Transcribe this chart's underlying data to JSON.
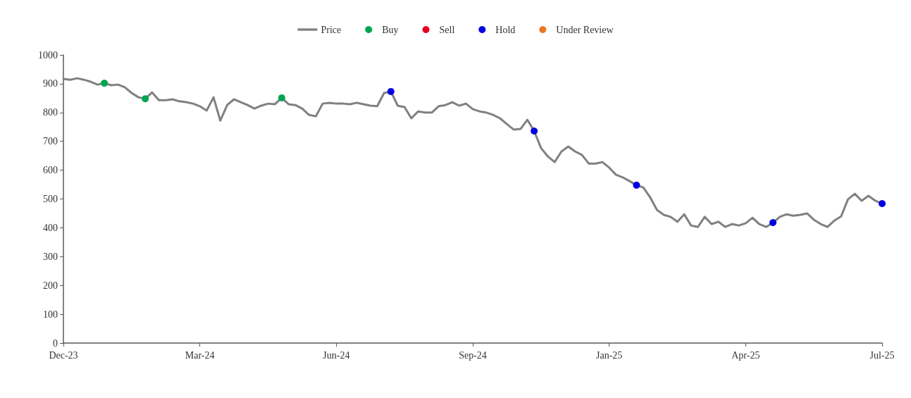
{
  "chart_data": {
    "type": "line",
    "categories": [
      "Dec-23",
      null,
      null,
      null,
      null,
      null,
      null,
      null,
      null,
      null,
      null,
      null,
      null,
      null,
      null,
      null,
      null,
      null,
      null,
      null,
      "Mar-24",
      null,
      null,
      null,
      null,
      null,
      null,
      null,
      null,
      null,
      null,
      null,
      null,
      null,
      null,
      null,
      null,
      null,
      null,
      null,
      "Jun-24",
      null,
      null,
      null,
      null,
      null,
      null,
      null,
      null,
      null,
      null,
      null,
      null,
      null,
      null,
      null,
      null,
      null,
      null,
      null,
      "Sep-24",
      null,
      null,
      null,
      null,
      null,
      null,
      null,
      null,
      null,
      null,
      null,
      null,
      null,
      null,
      null,
      null,
      null,
      null,
      null,
      "Jan-25",
      null,
      null,
      null,
      null,
      null,
      null,
      null,
      null,
      null,
      null,
      null,
      null,
      null,
      null,
      null,
      null,
      null,
      null,
      null,
      "Apr-25",
      null,
      null,
      null,
      null,
      null,
      null,
      null,
      null,
      null,
      null,
      null,
      null,
      null,
      null,
      null,
      null,
      null,
      null,
      null,
      "Jul-25"
    ],
    "series": [
      {
        "name": "Price",
        "color": "#808080",
        "values": [
          917,
          914,
          919,
          914,
          907,
          897,
          902,
          895,
          897,
          888,
          868,
          853,
          848,
          870,
          843,
          843,
          846,
          839,
          836,
          831,
          822,
          807,
          853,
          772,
          826,
          846,
          836,
          826,
          814,
          824,
          831,
          829,
          851,
          829,
          826,
          814,
          792,
          787,
          831,
          834,
          831,
          831,
          829,
          834,
          829,
          824,
          822,
          868,
          873,
          824,
          819,
          780,
          804,
          800,
          800,
          822,
          826,
          836,
          824,
          831,
          812,
          804,
          800,
          792,
          780,
          760,
          741,
          743,
          775,
          736,
          677,
          648,
          628,
          665,
          682,
          665,
          653,
          623,
          623,
          628,
          609,
          584,
          575,
          562,
          548,
          540,
          506,
          462,
          445,
          438,
          421,
          447,
          408,
          403,
          438,
          413,
          421,
          403,
          413,
          408,
          416,
          435,
          413,
          403,
          418,
          438,
          447,
          442,
          445,
          450,
          428,
          413,
          403,
          425,
          440,
          499,
          518,
          494,
          511,
          494,
          484
        ]
      },
      {
        "name": "Buy",
        "type": "scatter",
        "marker": "circle",
        "color": "#00a550",
        "values": [
          null,
          null,
          null,
          null,
          null,
          null,
          902,
          null,
          null,
          null,
          null,
          null,
          848,
          null,
          null,
          null,
          null,
          null,
          null,
          null,
          null,
          null,
          null,
          null,
          null,
          null,
          null,
          null,
          null,
          null,
          null,
          null,
          851,
          null,
          null,
          null,
          null,
          null,
          null,
          null,
          null,
          null,
          null,
          null,
          null,
          null,
          null,
          null,
          null,
          null,
          null,
          null,
          null,
          null,
          null,
          null,
          null,
          null,
          null,
          null,
          null,
          null,
          null,
          null,
          null,
          null,
          null,
          null,
          null,
          null,
          null,
          null,
          null,
          null,
          null,
          null,
          null,
          null,
          null,
          null,
          null,
          null,
          null,
          null,
          null,
          null,
          null,
          null,
          null,
          null,
          null,
          null,
          null,
          null,
          null,
          null,
          null,
          null,
          null,
          null,
          null,
          null,
          null,
          null,
          null,
          null,
          null,
          null,
          null,
          null,
          null,
          null,
          null,
          null,
          null,
          null,
          null,
          null,
          null,
          null,
          null
        ]
      },
      {
        "name": "Sell",
        "type": "scatter",
        "marker": "circle",
        "color": "#e8001c",
        "values": [
          null,
          null,
          null,
          null,
          null,
          null,
          null,
          null,
          null,
          null,
          null,
          null,
          null,
          null,
          null,
          null,
          null,
          null,
          null,
          null,
          null,
          null,
          null,
          null,
          null,
          null,
          null,
          null,
          null,
          null,
          null,
          null,
          null,
          null,
          null,
          null,
          null,
          null,
          null,
          null,
          null,
          null,
          null,
          null,
          null,
          null,
          null,
          null,
          null,
          null,
          null,
          null,
          null,
          null,
          null,
          null,
          null,
          null,
          null,
          null,
          null,
          null,
          null,
          null,
          null,
          null,
          null,
          null,
          null,
          null,
          null,
          null,
          null,
          null,
          null,
          null,
          null,
          null,
          null,
          null,
          null,
          null,
          null,
          null,
          null,
          null,
          null,
          null,
          null,
          null,
          null,
          null,
          null,
          null,
          null,
          null,
          null,
          null,
          null,
          null,
          null,
          null,
          null,
          null,
          null,
          null,
          null,
          null,
          null,
          null,
          null,
          null,
          null,
          null,
          null,
          null,
          null,
          null,
          null,
          null,
          null
        ]
      },
      {
        "name": "Hold",
        "type": "scatter",
        "marker": "circle",
        "color": "#0000e0",
        "values": [
          null,
          null,
          null,
          null,
          null,
          null,
          null,
          null,
          null,
          null,
          null,
          null,
          null,
          null,
          null,
          null,
          null,
          null,
          null,
          null,
          null,
          null,
          null,
          null,
          null,
          null,
          null,
          null,
          null,
          null,
          null,
          null,
          null,
          null,
          null,
          null,
          null,
          null,
          null,
          null,
          null,
          null,
          null,
          null,
          null,
          null,
          null,
          null,
          873,
          null,
          null,
          null,
          null,
          null,
          null,
          null,
          null,
          null,
          null,
          null,
          null,
          null,
          null,
          null,
          null,
          null,
          null,
          null,
          null,
          736,
          null,
          null,
          null,
          null,
          null,
          null,
          null,
          null,
          null,
          null,
          null,
          null,
          null,
          null,
          548,
          null,
          null,
          null,
          null,
          null,
          null,
          null,
          null,
          null,
          null,
          null,
          null,
          null,
          null,
          null,
          null,
          null,
          null,
          null,
          418,
          null,
          null,
          null,
          null,
          null,
          null,
          null,
          null,
          null,
          null,
          null,
          null,
          null,
          null,
          null,
          484
        ]
      },
      {
        "name": "Under Review",
        "type": "scatter",
        "marker": "circle",
        "color": "#e87722",
        "values": [
          null,
          null,
          null,
          null,
          null,
          null,
          null,
          null,
          null,
          null,
          null,
          null,
          null,
          null,
          null,
          null,
          null,
          null,
          null,
          null,
          null,
          null,
          null,
          null,
          null,
          null,
          null,
          null,
          null,
          null,
          null,
          null,
          null,
          null,
          null,
          null,
          null,
          null,
          null,
          null,
          null,
          null,
          null,
          null,
          null,
          null,
          null,
          null,
          null,
          null,
          null,
          null,
          null,
          null,
          null,
          null,
          null,
          null,
          null,
          null,
          null,
          null,
          null,
          null,
          null,
          null,
          null,
          null,
          null,
          null,
          null,
          null,
          null,
          null,
          null,
          null,
          null,
          null,
          null,
          null,
          null,
          null,
          null,
          null,
          null,
          null,
          null,
          null,
          null,
          null,
          null,
          null,
          null,
          null,
          null,
          null,
          null,
          null,
          null,
          null,
          null,
          null,
          null,
          null,
          null,
          null,
          null,
          null,
          null,
          null,
          null,
          null,
          null,
          null,
          null,
          null,
          null,
          null,
          null,
          null,
          null
        ]
      }
    ],
    "ylim": [
      0,
      1000
    ],
    "yticks": [
      0,
      100,
      200,
      300,
      400,
      500,
      600,
      700,
      800,
      900,
      1000
    ],
    "grid": false,
    "legend": "top",
    "marker": "none",
    "line_style": "solid"
  }
}
